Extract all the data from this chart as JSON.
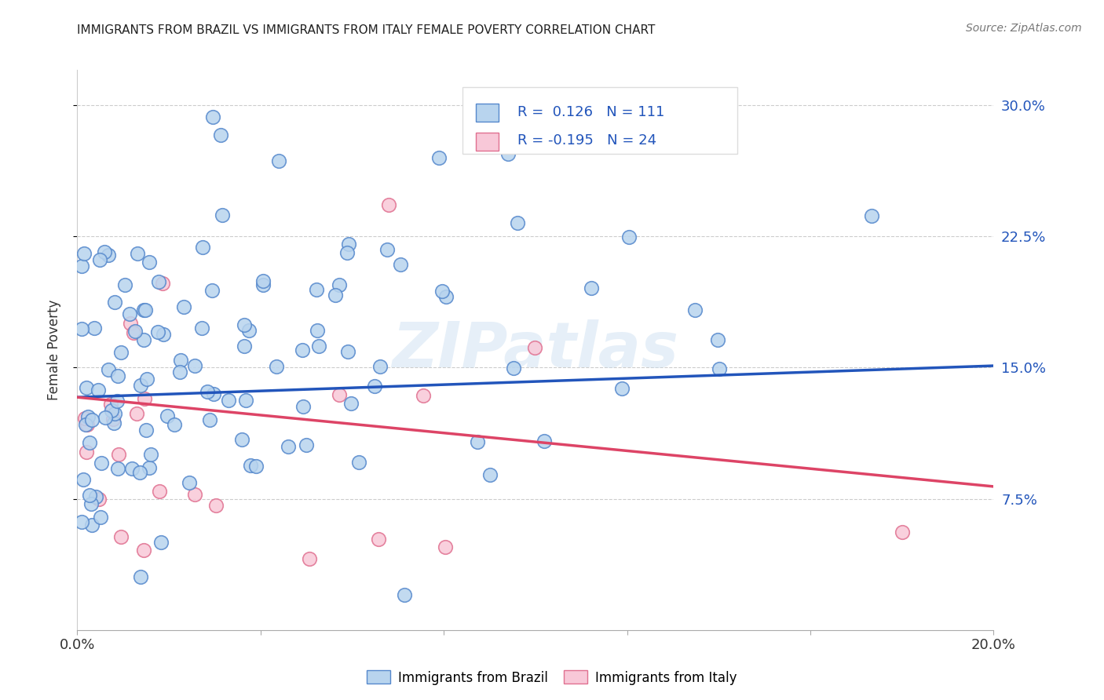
{
  "title": "IMMIGRANTS FROM BRAZIL VS IMMIGRANTS FROM ITALY FEMALE POVERTY CORRELATION CHART",
  "source": "Source: ZipAtlas.com",
  "ylabel": "Female Poverty",
  "yticks": [
    "7.5%",
    "15.0%",
    "22.5%",
    "30.0%"
  ],
  "ytick_vals": [
    0.075,
    0.15,
    0.225,
    0.3
  ],
  "xrange": [
    0.0,
    0.2
  ],
  "yrange": [
    0.0,
    0.32
  ],
  "brazil_color": "#b8d4ee",
  "brazil_edge": "#5588cc",
  "italy_color": "#f8c8d8",
  "italy_edge": "#e07090",
  "brazil_line_color": "#2255bb",
  "italy_line_color": "#dd4466",
  "brazil_R": 0.126,
  "brazil_N": 111,
  "italy_R": -0.195,
  "italy_N": 24,
  "brazil_line_x0": 0.0,
  "brazil_line_y0": 0.133,
  "brazil_line_x1": 0.2,
  "brazil_line_y1": 0.151,
  "italy_line_x0": 0.0,
  "italy_line_y0": 0.133,
  "italy_line_x1": 0.2,
  "italy_line_y1": 0.082,
  "tick_color": "#2255bb",
  "watermark": "ZIPatlas",
  "background_color": "#ffffff",
  "grid_color": "#cccccc",
  "legend_box_color": "#dddddd"
}
